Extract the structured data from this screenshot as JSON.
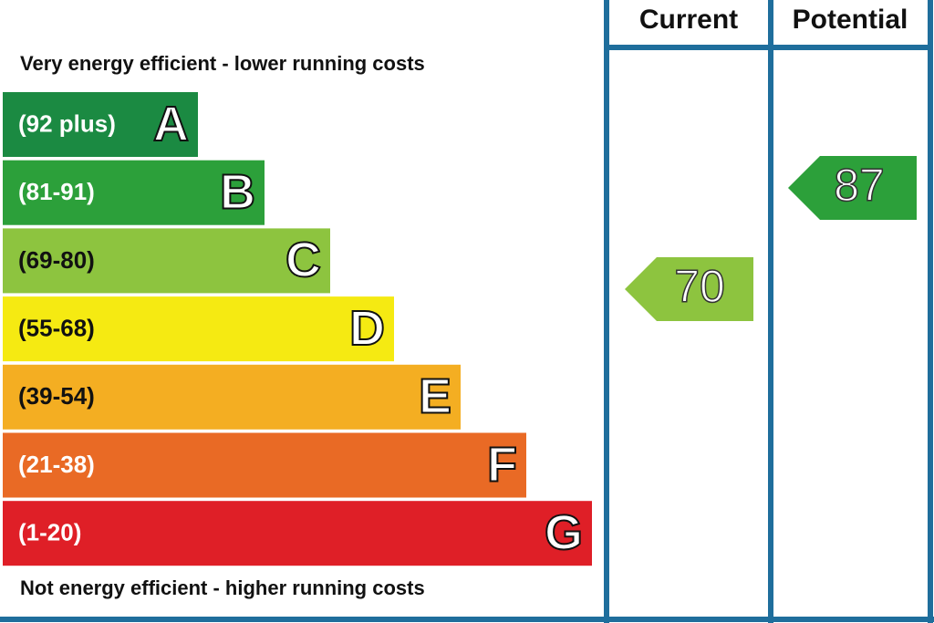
{
  "header": {
    "top_note": "Very energy efficient - lower running costs",
    "bottom_note": "Not energy efficient - higher running costs",
    "current_label": "Current",
    "potential_label": "Potential"
  },
  "bands": [
    {
      "range": "(92 plus)",
      "letter": "A",
      "color": "#1b8a42"
    },
    {
      "range": "(81-91)",
      "letter": "B",
      "color": "#2ca03a"
    },
    {
      "range": "(69-80)",
      "letter": "C",
      "color": "#8dc43f"
    },
    {
      "range": "(55-68)",
      "letter": "D",
      "color": "#f5ea12"
    },
    {
      "range": "(39-54)",
      "letter": "E",
      "color": "#f4ae22"
    },
    {
      "range": "(21-38)",
      "letter": "F",
      "color": "#e96a25"
    },
    {
      "range": "(1-20)",
      "letter": "G",
      "color": "#df1f27"
    }
  ],
  "current": {
    "value": "70",
    "color": "#8dc43f"
  },
  "potential": {
    "value": "87",
    "color": "#2ca03a"
  }
}
